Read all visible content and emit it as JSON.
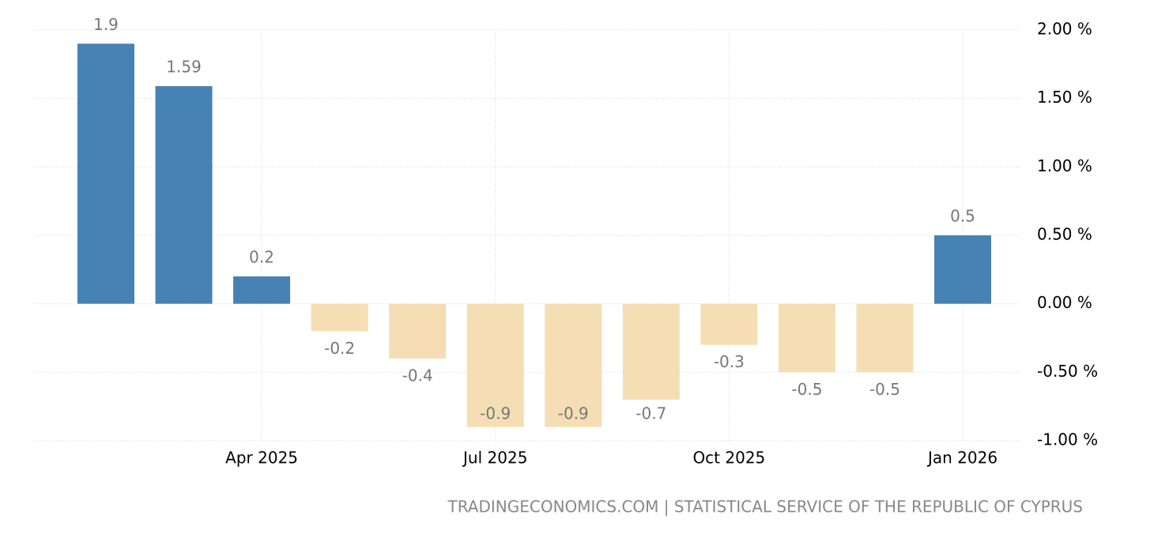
{
  "chart_data": {
    "type": "bar",
    "categories": [
      null,
      null,
      "Apr 2025",
      null,
      null,
      "Jul 2025",
      null,
      null,
      "Oct 2025",
      null,
      null,
      "Jan 2026"
    ],
    "values": [
      1.9,
      1.59,
      0.2,
      -0.2,
      -0.4,
      -0.9,
      -0.9,
      -0.7,
      -0.3,
      -0.5,
      -0.5,
      0.5
    ],
    "positive_color": "#4682b4",
    "negative_color": "#f5deb3",
    "ylim": [
      -1,
      2
    ],
    "yticks": [
      {
        "value": 2,
        "label": "2.00 %"
      },
      {
        "value": 1.5,
        "label": "1.50 %"
      },
      {
        "value": 1,
        "label": "1.00 %"
      },
      {
        "value": 0.5,
        "label": "0.50 %"
      },
      {
        "value": 0,
        "label": "0.00 %"
      },
      {
        "value": -0.5,
        "label": "-0.50 %"
      },
      {
        "value": -1,
        "label": "-1.00 %"
      }
    ],
    "grid": true,
    "source": "TRADINGECONOMICS.COM | STATISTICAL SERVICE OF THE REPUBLIC OF CYPRUS"
  }
}
